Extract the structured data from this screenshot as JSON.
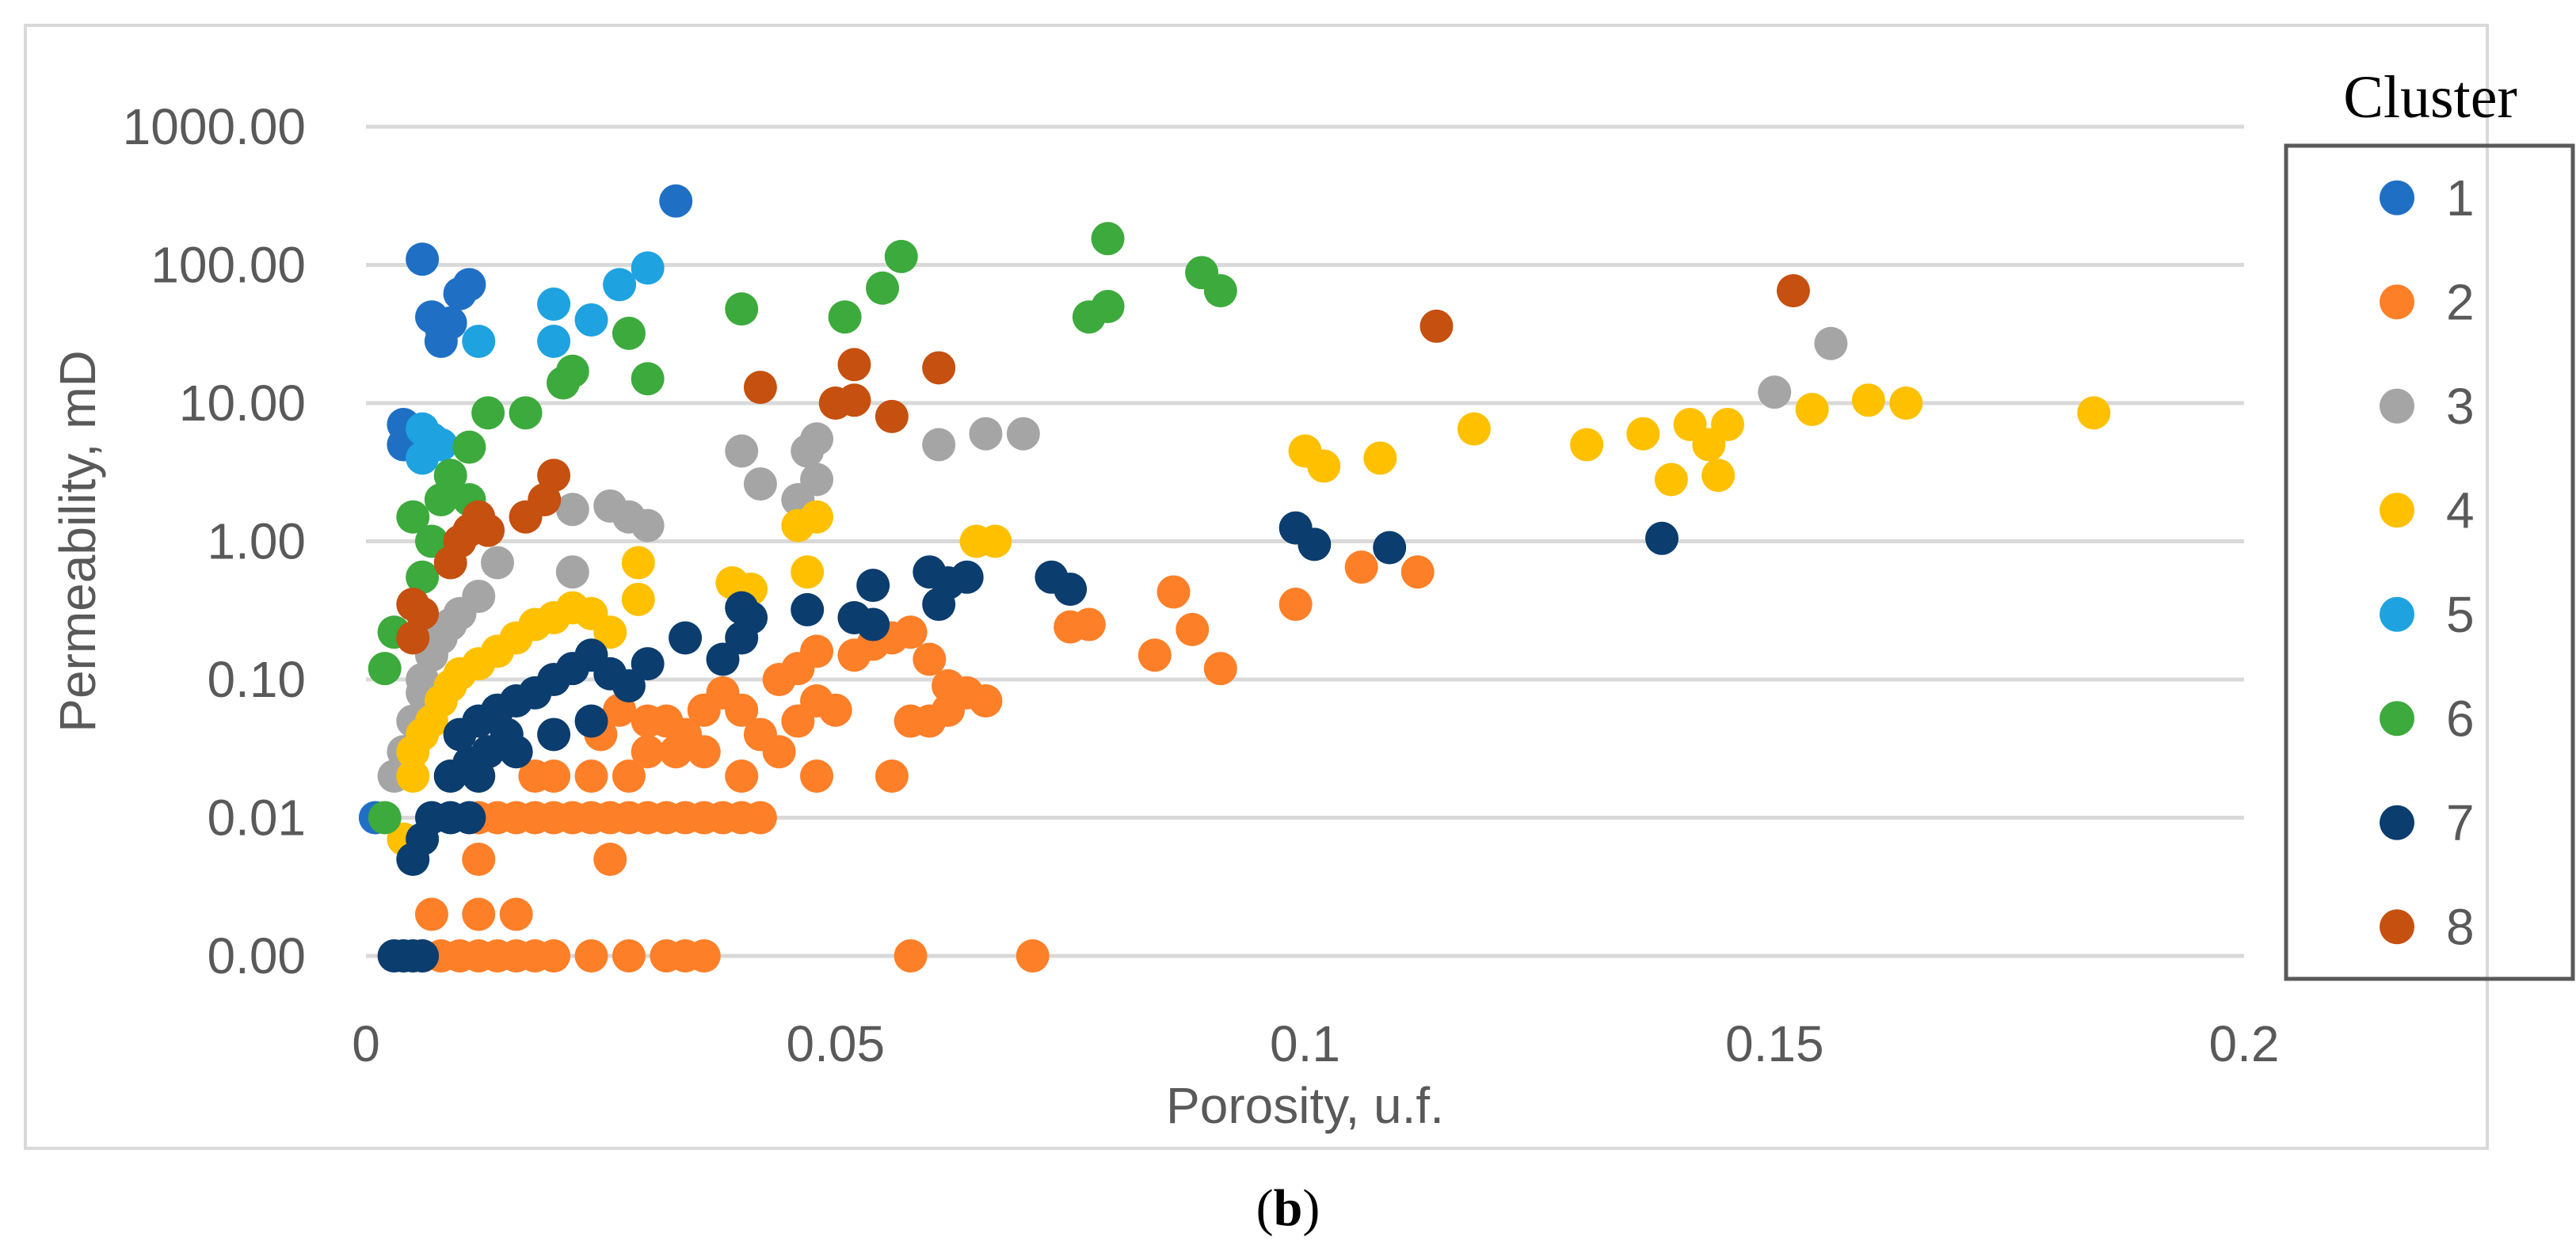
{
  "caption": {
    "open": "(",
    "letter": "b",
    "close": ")"
  },
  "chart_data": {
    "type": "scatter",
    "title": "",
    "xlabel": "Porosity, u.f.",
    "ylabel": "Permeability, mD",
    "xlim": [
      0,
      0.2
    ],
    "ylim": [
      0.001,
      1000
    ],
    "yscale": "log",
    "x_ticks": [
      0,
      0.05,
      0.1,
      0.15,
      0.2
    ],
    "x_tick_labels": [
      "0",
      "0.05",
      "0.1",
      "0.15",
      "0.2"
    ],
    "y_ticks": [
      0.001,
      0.01,
      0.1,
      1,
      10,
      100,
      1000
    ],
    "y_tick_labels": [
      "0.00",
      "0.01",
      "0.10",
      "1.00",
      "10.00",
      "100.00",
      "1000.00"
    ],
    "grid": "horizontal",
    "legend": {
      "title": "Cluster",
      "position": "right"
    },
    "series": [
      {
        "name": "1",
        "color": "#1f6fc5",
        "points": [
          [
            0.001,
            0.01
          ],
          [
            0.006,
            110
          ],
          [
            0.007,
            42
          ],
          [
            0.008,
            28
          ],
          [
            0.008,
            35
          ],
          [
            0.009,
            38
          ],
          [
            0.01,
            62
          ],
          [
            0.011,
            72
          ],
          [
            0.004,
            7
          ],
          [
            0.004,
            5
          ],
          [
            0.033,
            290
          ]
        ]
      },
      {
        "name": "2",
        "color": "#fd7f28",
        "points": [
          [
            0.007,
            0.002
          ],
          [
            0.012,
            0.002
          ],
          [
            0.016,
            0.002
          ],
          [
            0.012,
            0.005
          ],
          [
            0.026,
            0.005
          ],
          [
            0.006,
            0.001
          ],
          [
            0.008,
            0.001
          ],
          [
            0.01,
            0.001
          ],
          [
            0.012,
            0.001
          ],
          [
            0.014,
            0.001
          ],
          [
            0.016,
            0.001
          ],
          [
            0.018,
            0.001
          ],
          [
            0.02,
            0.001
          ],
          [
            0.024,
            0.001
          ],
          [
            0.028,
            0.001
          ],
          [
            0.032,
            0.001
          ],
          [
            0.034,
            0.001
          ],
          [
            0.036,
            0.001
          ],
          [
            0.058,
            0.001
          ],
          [
            0.071,
            0.001
          ],
          [
            0.012,
            0.01
          ],
          [
            0.014,
            0.01
          ],
          [
            0.016,
            0.01
          ],
          [
            0.018,
            0.01
          ],
          [
            0.02,
            0.01
          ],
          [
            0.022,
            0.01
          ],
          [
            0.024,
            0.01
          ],
          [
            0.026,
            0.01
          ],
          [
            0.028,
            0.01
          ],
          [
            0.03,
            0.01
          ],
          [
            0.032,
            0.01
          ],
          [
            0.034,
            0.01
          ],
          [
            0.036,
            0.01
          ],
          [
            0.038,
            0.01
          ],
          [
            0.04,
            0.01
          ],
          [
            0.042,
            0.01
          ],
          [
            0.018,
            0.02
          ],
          [
            0.02,
            0.02
          ],
          [
            0.024,
            0.02
          ],
          [
            0.028,
            0.02
          ],
          [
            0.03,
            0.03
          ],
          [
            0.032,
            0.05
          ],
          [
            0.034,
            0.04
          ],
          [
            0.036,
            0.06
          ],
          [
            0.038,
            0.08
          ],
          [
            0.04,
            0.06
          ],
          [
            0.042,
            0.04
          ],
          [
            0.044,
            0.03
          ],
          [
            0.046,
            0.05
          ],
          [
            0.048,
            0.07
          ],
          [
            0.05,
            0.06
          ],
          [
            0.052,
            0.15
          ],
          [
            0.054,
            0.18
          ],
          [
            0.056,
            0.2
          ],
          [
            0.058,
            0.22
          ],
          [
            0.06,
            0.14
          ],
          [
            0.062,
            0.09
          ],
          [
            0.064,
            0.08
          ],
          [
            0.066,
            0.07
          ],
          [
            0.058,
            0.05
          ],
          [
            0.06,
            0.05
          ],
          [
            0.062,
            0.06
          ],
          [
            0.056,
            0.02
          ],
          [
            0.048,
            0.02
          ],
          [
            0.04,
            0.02
          ],
          [
            0.025,
            0.04
          ],
          [
            0.027,
            0.06
          ],
          [
            0.03,
            0.05
          ],
          [
            0.033,
            0.03
          ],
          [
            0.036,
            0.03
          ],
          [
            0.044,
            0.1
          ],
          [
            0.046,
            0.12
          ],
          [
            0.048,
            0.16
          ],
          [
            0.075,
            0.24
          ],
          [
            0.077,
            0.25
          ],
          [
            0.084,
            0.15
          ],
          [
            0.086,
            0.43
          ],
          [
            0.088,
            0.23
          ],
          [
            0.091,
            0.12
          ],
          [
            0.099,
            0.35
          ],
          [
            0.106,
            0.65
          ],
          [
            0.112,
            0.6
          ]
        ]
      },
      {
        "name": "3",
        "color": "#a5a5a5",
        "points": [
          [
            0.003,
            0.02
          ],
          [
            0.004,
            0.03
          ],
          [
            0.005,
            0.05
          ],
          [
            0.006,
            0.08
          ],
          [
            0.006,
            0.1
          ],
          [
            0.007,
            0.15
          ],
          [
            0.008,
            0.2
          ],
          [
            0.009,
            0.25
          ],
          [
            0.01,
            0.3
          ],
          [
            0.012,
            0.4
          ],
          [
            0.014,
            0.7
          ],
          [
            0.022,
            0.6
          ],
          [
            0.022,
            1.7
          ],
          [
            0.026,
            1.8
          ],
          [
            0.028,
            1.5
          ],
          [
            0.03,
            1.3
          ],
          [
            0.04,
            4.5
          ],
          [
            0.042,
            2.6
          ],
          [
            0.046,
            2
          ],
          [
            0.047,
            4.5
          ],
          [
            0.048,
            2.8
          ],
          [
            0.048,
            5.5
          ],
          [
            0.061,
            5
          ],
          [
            0.066,
            6
          ],
          [
            0.07,
            6
          ],
          [
            0.15,
            12
          ],
          [
            0.156,
            27
          ]
        ]
      },
      {
        "name": "4",
        "color": "#ffc000",
        "points": [
          [
            0.004,
            0.007
          ],
          [
            0.005,
            0.02
          ],
          [
            0.005,
            0.03
          ],
          [
            0.006,
            0.04
          ],
          [
            0.007,
            0.05
          ],
          [
            0.008,
            0.07
          ],
          [
            0.009,
            0.09
          ],
          [
            0.01,
            0.11
          ],
          [
            0.012,
            0.13
          ],
          [
            0.014,
            0.16
          ],
          [
            0.016,
            0.2
          ],
          [
            0.018,
            0.25
          ],
          [
            0.02,
            0.28
          ],
          [
            0.022,
            0.33
          ],
          [
            0.024,
            0.3
          ],
          [
            0.026,
            0.22
          ],
          [
            0.029,
            0.38
          ],
          [
            0.029,
            0.7
          ],
          [
            0.039,
            0.5
          ],
          [
            0.041,
            0.45
          ],
          [
            0.046,
            1.3
          ],
          [
            0.048,
            1.5
          ],
          [
            0.047,
            0.6
          ],
          [
            0.065,
            1
          ],
          [
            0.067,
            1
          ],
          [
            0.1,
            4.5
          ],
          [
            0.102,
            3.5
          ],
          [
            0.108,
            4
          ],
          [
            0.118,
            6.5
          ],
          [
            0.13,
            5
          ],
          [
            0.136,
            6
          ],
          [
            0.139,
            2.8
          ],
          [
            0.141,
            7
          ],
          [
            0.143,
            5
          ],
          [
            0.144,
            3
          ],
          [
            0.145,
            7
          ],
          [
            0.154,
            9
          ],
          [
            0.16,
            10.5
          ],
          [
            0.164,
            10
          ],
          [
            0.184,
            8.5
          ]
        ]
      },
      {
        "name": "5",
        "color": "#1ea2e0",
        "points": [
          [
            0.006,
            6.5
          ],
          [
            0.007,
            5.5
          ],
          [
            0.008,
            5
          ],
          [
            0.006,
            4
          ],
          [
            0.012,
            28
          ],
          [
            0.02,
            52
          ],
          [
            0.02,
            28
          ],
          [
            0.024,
            40
          ],
          [
            0.027,
            72
          ],
          [
            0.03,
            95
          ]
        ]
      },
      {
        "name": "6",
        "color": "#3caa3c",
        "points": [
          [
            0.002,
            0.12
          ],
          [
            0.003,
            0.22
          ],
          [
            0.002,
            0.01
          ],
          [
            0.005,
            1.5
          ],
          [
            0.006,
            0.55
          ],
          [
            0.007,
            1
          ],
          [
            0.008,
            2
          ],
          [
            0.009,
            3
          ],
          [
            0.011,
            2
          ],
          [
            0.011,
            4.8
          ],
          [
            0.013,
            8.5
          ],
          [
            0.017,
            8.5
          ],
          [
            0.021,
            14
          ],
          [
            0.022,
            17
          ],
          [
            0.028,
            32
          ],
          [
            0.03,
            15
          ],
          [
            0.04,
            48
          ],
          [
            0.051,
            42
          ],
          [
            0.055,
            68
          ],
          [
            0.057,
            115
          ],
          [
            0.077,
            42
          ],
          [
            0.079,
            50
          ],
          [
            0.079,
            155
          ],
          [
            0.089,
            88
          ],
          [
            0.091,
            65
          ]
        ]
      },
      {
        "name": "7",
        "color": "#0b3d6e",
        "points": [
          [
            0.003,
            0.001
          ],
          [
            0.004,
            0.001
          ],
          [
            0.005,
            0.001
          ],
          [
            0.006,
            0.001
          ],
          [
            0.005,
            0.005
          ],
          [
            0.006,
            0.007
          ],
          [
            0.007,
            0.01
          ],
          [
            0.009,
            0.01
          ],
          [
            0.011,
            0.01
          ],
          [
            0.009,
            0.02
          ],
          [
            0.011,
            0.025
          ],
          [
            0.013,
            0.03
          ],
          [
            0.015,
            0.04
          ],
          [
            0.01,
            0.04
          ],
          [
            0.012,
            0.05
          ],
          [
            0.014,
            0.06
          ],
          [
            0.016,
            0.07
          ],
          [
            0.018,
            0.08
          ],
          [
            0.02,
            0.1
          ],
          [
            0.022,
            0.12
          ],
          [
            0.024,
            0.15
          ],
          [
            0.026,
            0.11
          ],
          [
            0.028,
            0.09
          ],
          [
            0.03,
            0.13
          ],
          [
            0.034,
            0.2
          ],
          [
            0.038,
            0.14
          ],
          [
            0.04,
            0.2
          ],
          [
            0.04,
            0.33
          ],
          [
            0.041,
            0.28
          ],
          [
            0.047,
            0.32
          ],
          [
            0.052,
            0.28
          ],
          [
            0.054,
            0.25
          ],
          [
            0.054,
            0.48
          ],
          [
            0.06,
            0.6
          ],
          [
            0.061,
            0.35
          ],
          [
            0.062,
            0.5
          ],
          [
            0.064,
            0.55
          ],
          [
            0.073,
            0.55
          ],
          [
            0.075,
            0.45
          ],
          [
            0.099,
            1.25
          ],
          [
            0.101,
            0.95
          ],
          [
            0.109,
            0.9
          ],
          [
            0.138,
            1.05
          ],
          [
            0.012,
            0.02
          ],
          [
            0.016,
            0.03
          ],
          [
            0.02,
            0.04
          ],
          [
            0.024,
            0.05
          ]
        ]
      },
      {
        "name": "8",
        "color": "#c5500f",
        "points": [
          [
            0.005,
            0.2
          ],
          [
            0.005,
            0.35
          ],
          [
            0.006,
            0.3
          ],
          [
            0.009,
            0.7
          ],
          [
            0.01,
            1
          ],
          [
            0.011,
            1.2
          ],
          [
            0.012,
            1.5
          ],
          [
            0.013,
            1.2
          ],
          [
            0.017,
            1.5
          ],
          [
            0.019,
            2
          ],
          [
            0.02,
            3
          ],
          [
            0.042,
            13
          ],
          [
            0.05,
            10
          ],
          [
            0.052,
            10.5
          ],
          [
            0.052,
            19
          ],
          [
            0.056,
            8
          ],
          [
            0.061,
            18
          ],
          [
            0.114,
            36
          ],
          [
            0.152,
            65
          ]
        ]
      }
    ]
  }
}
